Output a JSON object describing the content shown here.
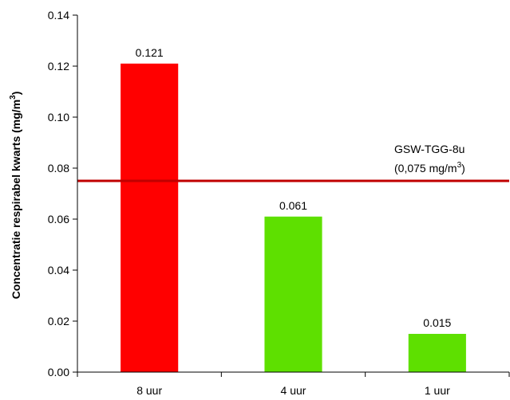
{
  "chart_data": {
    "type": "bar",
    "categories": [
      "8 uur",
      "4 uur",
      "1 uur"
    ],
    "values": [
      0.121,
      0.061,
      0.015
    ],
    "data_labels": [
      "0.121",
      "0.061",
      "0.015"
    ],
    "bar_colors": [
      "#ff0000",
      "#5ee000",
      "#5ee000"
    ],
    "ylim": [
      0,
      0.14
    ],
    "yticks": [
      0,
      0.02,
      0.04,
      0.06,
      0.08,
      0.1,
      0.12,
      0.14
    ],
    "ytick_labels": [
      "0.00",
      "0.02",
      "0.04",
      "0.06",
      "0.08",
      "0.10",
      "0.12",
      "0.14"
    ],
    "ylabel_main": "Concentratie respirabel kwarts (mg/m",
    "ylabel_sup": "3",
    "ylabel_close": ")",
    "xlabel": "",
    "title": "",
    "grid": false,
    "reference_line": {
      "value": 0.075,
      "color": "#c00000",
      "label_line1": "GSW-TGG-8u",
      "label_line2_main": "(0,075 mg/m",
      "label_line2_sup": "3",
      "label_line2_close": ")"
    }
  }
}
